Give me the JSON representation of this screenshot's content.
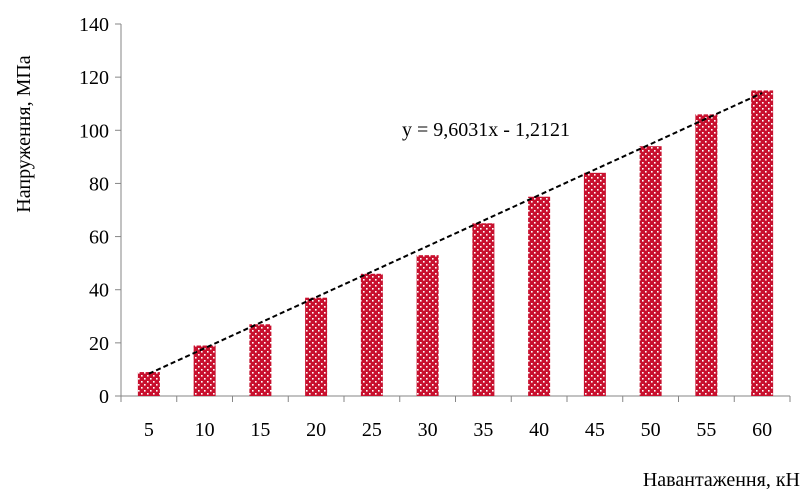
{
  "chart_data": {
    "type": "bar",
    "categories": [
      "5",
      "10",
      "15",
      "20",
      "25",
      "30",
      "35",
      "40",
      "45",
      "50",
      "55",
      "60"
    ],
    "series": [
      {
        "values": [
          9,
          19,
          27,
          37,
          46,
          53,
          65,
          75,
          84,
          94,
          106,
          115
        ],
        "color": "#c8102e",
        "pattern": "dotted-checker"
      }
    ],
    "trendline": {
      "type": "linear",
      "style": "dashed",
      "color": "#000000",
      "equation": "y = 9,6031x - 1,2121",
      "slope": 9.6031,
      "intercept": -1.2121
    },
    "xlabel": "Навантаження, кН",
    "ylabel": "Напруження, МПа",
    "ylim": [
      0,
      140
    ],
    "yticks": [
      "0",
      "20",
      "40",
      "60",
      "80",
      "100",
      "120",
      "140"
    ],
    "grid": false,
    "legend": "none"
  }
}
